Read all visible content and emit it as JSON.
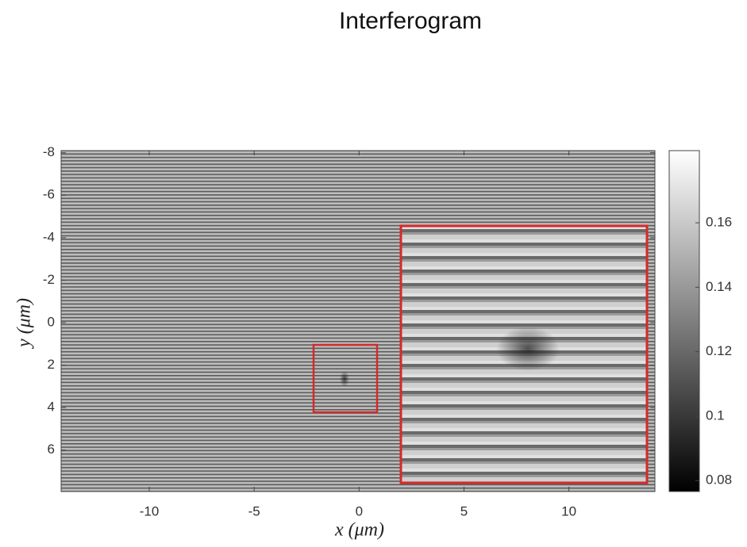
{
  "chart_data": {
    "type": "heatmap",
    "title": "Interferogram",
    "xlabel": "x (μm)",
    "ylabel": "y (μm)",
    "xlim": [
      -14.2,
      14.1
    ],
    "xticks": [
      -10,
      -5,
      0,
      5,
      10
    ],
    "ylim": [
      -8.1,
      7.95
    ],
    "yticks": [
      -8,
      -6,
      -4,
      -2,
      0,
      2,
      4,
      6
    ],
    "colorbar": {
      "lim": [
        0.0766,
        0.1824
      ],
      "ticks": [
        0.08,
        0.1,
        0.12,
        0.14,
        0.16
      ],
      "colormap": "gray"
    }
  }
}
